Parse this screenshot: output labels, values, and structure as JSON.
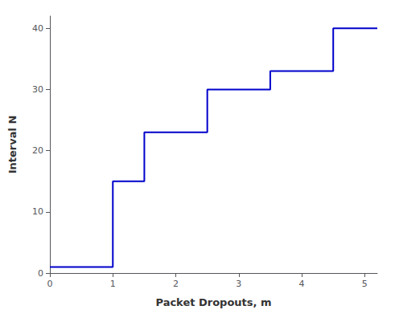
{
  "chart_data": {
    "type": "line",
    "xlabel": "Packet Dropouts, m",
    "ylabel": "Interval N",
    "color": "#0000CC",
    "x": [
      0,
      1,
      1,
      1.5,
      1.5,
      2.5,
      2.5,
      3.5,
      3.5,
      4.5,
      4.5,
      5.2
    ],
    "values": [
      1,
      1,
      15,
      15,
      23,
      23,
      30,
      30,
      33,
      33,
      40,
      40
    ],
    "xlim": [
      0,
      5.2
    ],
    "ylim": [
      0,
      42
    ],
    "xticks": [
      0,
      1,
      2,
      3,
      4,
      5
    ],
    "yticks": [
      0,
      10,
      20,
      30,
      40
    ],
    "grid": false
  }
}
